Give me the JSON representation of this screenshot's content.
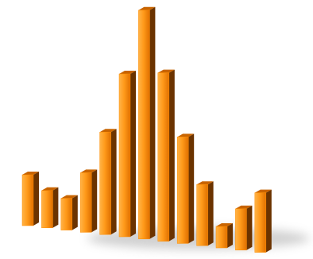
{
  "chart_data": {
    "type": "bar",
    "values": [
      64,
      47,
      40,
      75,
      129,
      205,
      288,
      212,
      134,
      77,
      27,
      52,
      75
    ],
    "color": "#ff8c00",
    "ylim": [
      0,
      300
    ]
  }
}
